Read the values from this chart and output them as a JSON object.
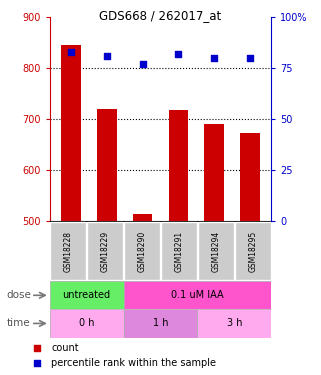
{
  "title": "GDS668 / 262017_at",
  "categories": [
    "GSM18228",
    "GSM18229",
    "GSM18290",
    "GSM18291",
    "GSM18294",
    "GSM18295"
  ],
  "bar_values": [
    845,
    720,
    515,
    718,
    690,
    672
  ],
  "dot_values": [
    83,
    81,
    77,
    82,
    80,
    80
  ],
  "bar_color": "#cc0000",
  "dot_color": "#0000cc",
  "left_ylim": [
    500,
    900
  ],
  "left_yticks": [
    500,
    600,
    700,
    800,
    900
  ],
  "right_ylim": [
    0,
    100
  ],
  "right_yticks": [
    0,
    25,
    50,
    75,
    100
  ],
  "right_yticklabels": [
    "0",
    "25",
    "50",
    "75",
    "100%"
  ],
  "hgrid_values": [
    600,
    700,
    800
  ],
  "dose_untreated_color": "#66ee66",
  "dose_iaa_color": "#ff55cc",
  "time_0h_color": "#ffaaee",
  "time_1h_color": "#dd88dd",
  "time_3h_color": "#ffaaee",
  "sample_label_color": "#cccccc",
  "left_tick_color": "#cc0000",
  "right_tick_color": "#0000cc",
  "bar_bottom": 500,
  "legend_count_label": "count",
  "legend_pct_label": "percentile rank within the sample"
}
